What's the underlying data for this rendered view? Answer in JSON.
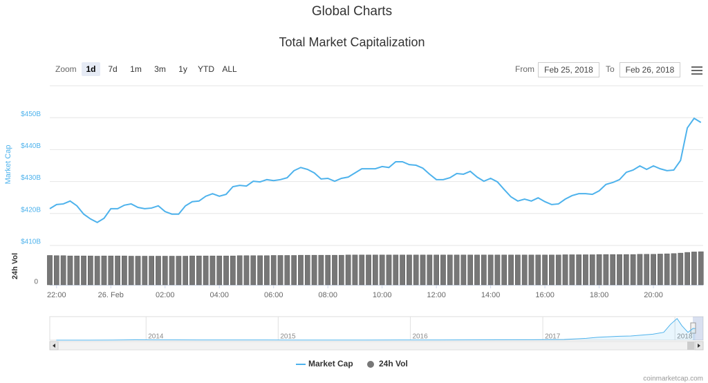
{
  "header": {
    "title": "Global Charts"
  },
  "controls": {
    "zoom_label": "Zoom",
    "zoom_options": [
      "1d",
      "7d",
      "1m",
      "3m",
      "1y",
      "YTD",
      "ALL"
    ],
    "zoom_selected": 0,
    "from_label": "From",
    "from_value": "Feb 25, 2018",
    "to_label": "To",
    "to_value": "Feb 26, 2018"
  },
  "credit": "coinmarketcap.com",
  "chart_data": [
    {
      "type": "line",
      "title": "Total Market Capitalization",
      "y_label": "Market Cap",
      "y2_label": "24h Vol",
      "xlim": [
        "2018-02-25T21:45",
        "2018-02-26T21:50"
      ],
      "xticks": [
        {
          "value": "2018-02-25T22:00",
          "label": "22:00"
        },
        {
          "value": "2018-02-26T00:00",
          "label": "26. Feb"
        },
        {
          "value": "2018-02-26T02:00",
          "label": "02:00"
        },
        {
          "value": "2018-02-26T04:00",
          "label": "04:00"
        },
        {
          "value": "2018-02-26T06:00",
          "label": "06:00"
        },
        {
          "value": "2018-02-26T08:00",
          "label": "08:00"
        },
        {
          "value": "2018-02-26T10:00",
          "label": "10:00"
        },
        {
          "value": "2018-02-26T12:00",
          "label": "12:00"
        },
        {
          "value": "2018-02-26T14:00",
          "label": "14:00"
        },
        {
          "value": "2018-02-26T16:00",
          "label": "16:00"
        },
        {
          "value": "2018-02-26T18:00",
          "label": "18:00"
        },
        {
          "value": "2018-02-26T20:00",
          "label": "20:00"
        }
      ],
      "ylim": [
        410,
        460
      ],
      "yticks": [
        {
          "value": 410,
          "label": "$410B"
        },
        {
          "value": 420,
          "label": "$420B"
        },
        {
          "value": 430,
          "label": "$430B"
        },
        {
          "value": 440,
          "label": "$440B"
        },
        {
          "value": 450,
          "label": "$450B"
        }
      ],
      "y2lim": [
        0,
        16
      ],
      "y2ticks": [
        0
      ],
      "grid": true,
      "x": [
        "2018-02-25T21:45",
        "2018-02-25T22:00",
        "2018-02-25T22:15",
        "2018-02-25T22:30",
        "2018-02-25T22:45",
        "2018-02-25T23:00",
        "2018-02-25T23:15",
        "2018-02-25T23:30",
        "2018-02-25T23:45",
        "2018-02-26T00:00",
        "2018-02-26T00:15",
        "2018-02-26T00:30",
        "2018-02-26T00:45",
        "2018-02-26T01:00",
        "2018-02-26T01:15",
        "2018-02-26T01:30",
        "2018-02-26T01:45",
        "2018-02-26T02:00",
        "2018-02-26T02:15",
        "2018-02-26T02:30",
        "2018-02-26T02:45",
        "2018-02-26T03:00",
        "2018-02-26T03:15",
        "2018-02-26T03:30",
        "2018-02-26T03:45",
        "2018-02-26T04:00",
        "2018-02-26T04:15",
        "2018-02-26T04:30",
        "2018-02-26T04:45",
        "2018-02-26T05:00",
        "2018-02-26T05:15",
        "2018-02-26T05:30",
        "2018-02-26T05:45",
        "2018-02-26T06:00",
        "2018-02-26T06:15",
        "2018-02-26T06:30",
        "2018-02-26T06:45",
        "2018-02-26T07:00",
        "2018-02-26T07:15",
        "2018-02-26T07:30",
        "2018-02-26T07:45",
        "2018-02-26T08:00",
        "2018-02-26T08:15",
        "2018-02-26T08:30",
        "2018-02-26T08:45",
        "2018-02-26T09:00",
        "2018-02-26T09:15",
        "2018-02-26T09:30",
        "2018-02-26T09:45",
        "2018-02-26T10:00",
        "2018-02-26T10:15",
        "2018-02-26T10:30",
        "2018-02-26T10:45",
        "2018-02-26T11:00",
        "2018-02-26T11:15",
        "2018-02-26T11:30",
        "2018-02-26T11:45",
        "2018-02-26T12:00",
        "2018-02-26T12:15",
        "2018-02-26T12:30",
        "2018-02-26T12:45",
        "2018-02-26T13:00",
        "2018-02-26T13:15",
        "2018-02-26T13:30",
        "2018-02-26T13:45",
        "2018-02-26T14:00",
        "2018-02-26T14:15",
        "2018-02-26T14:30",
        "2018-02-26T14:45",
        "2018-02-26T15:00",
        "2018-02-26T15:15",
        "2018-02-26T15:30",
        "2018-02-26T15:45",
        "2018-02-26T16:00",
        "2018-02-26T16:15",
        "2018-02-26T16:30",
        "2018-02-26T16:45",
        "2018-02-26T17:00",
        "2018-02-26T17:15",
        "2018-02-26T17:30",
        "2018-02-26T17:45",
        "2018-02-26T18:00",
        "2018-02-26T18:15",
        "2018-02-26T18:30",
        "2018-02-26T18:45",
        "2018-02-26T19:00",
        "2018-02-26T19:15",
        "2018-02-26T19:30",
        "2018-02-26T19:45",
        "2018-02-26T20:00",
        "2018-02-26T20:15",
        "2018-02-26T20:30",
        "2018-02-26T20:45",
        "2018-02-26T21:00",
        "2018-02-26T21:15",
        "2018-02-26T21:30",
        "2018-02-26T21:45"
      ],
      "series": [
        {
          "name": "Market Cap",
          "type": "line",
          "color": "#4db2ec",
          "values": [
            421.5,
            422.8,
            423.0,
            423.9,
            422.4,
            419.8,
            418.3,
            417.2,
            418.5,
            421.5,
            421.5,
            422.6,
            423.0,
            421.9,
            421.5,
            421.7,
            422.4,
            420.6,
            419.8,
            419.8,
            422.4,
            423.7,
            423.9,
            425.4,
            426.2,
            425.4,
            426.0,
            428.4,
            428.8,
            428.6,
            430.1,
            429.9,
            430.6,
            430.3,
            430.6,
            431.2,
            433.4,
            434.4,
            433.8,
            432.7,
            430.8,
            431.0,
            430.1,
            431.0,
            431.4,
            432.7,
            434.0,
            434.0,
            434.0,
            434.7,
            434.4,
            436.2,
            436.2,
            435.3,
            435.1,
            434.2,
            432.3,
            430.6,
            430.6,
            431.2,
            432.5,
            432.3,
            433.2,
            431.4,
            430.1,
            431.0,
            429.9,
            427.5,
            425.2,
            423.9,
            424.5,
            423.9,
            424.9,
            423.7,
            422.8,
            423.0,
            424.5,
            425.6,
            426.2,
            426.2,
            426.0,
            427.1,
            429.1,
            429.7,
            430.6,
            432.9,
            433.6,
            434.9,
            433.8,
            434.9,
            434.0,
            433.4,
            433.6,
            436.6,
            446.8,
            449.8,
            448.5
          ]
        },
        {
          "name": "24h Vol",
          "type": "column",
          "axis": "y2",
          "color": "#777777",
          "values": [
            12.6,
            12.5,
            12.5,
            12.4,
            12.4,
            12.4,
            12.4,
            12.3,
            12.4,
            12.4,
            12.4,
            12.4,
            12.3,
            12.3,
            12.3,
            12.3,
            12.3,
            12.3,
            12.3,
            12.3,
            12.3,
            12.4,
            12.4,
            12.4,
            12.4,
            12.4,
            12.4,
            12.4,
            12.5,
            12.5,
            12.5,
            12.5,
            12.5,
            12.6,
            12.6,
            12.6,
            12.6,
            12.7,
            12.7,
            12.7,
            12.7,
            12.7,
            12.7,
            12.7,
            12.8,
            12.8,
            12.8,
            12.8,
            12.8,
            12.8,
            12.8,
            12.8,
            12.8,
            12.8,
            12.8,
            12.8,
            12.8,
            12.8,
            12.8,
            12.8,
            12.8,
            12.8,
            12.8,
            12.8,
            12.8,
            12.8,
            12.8,
            12.8,
            12.8,
            12.8,
            12.8,
            12.8,
            12.8,
            12.8,
            12.8,
            12.8,
            12.9,
            12.9,
            12.9,
            12.9,
            12.9,
            13.0,
            13.0,
            13.0,
            13.0,
            13.0,
            13.0,
            13.1,
            13.1,
            13.1,
            13.2,
            13.3,
            13.4,
            13.6,
            13.9,
            14.1,
            14.2
          ]
        }
      ]
    },
    {
      "type": "area",
      "xlim": [
        "2013-04-10",
        "2018-03-20"
      ],
      "ylim": [
        0,
        850
      ],
      "xticks": [
        {
          "value": "2014-01-01",
          "label": "2014"
        },
        {
          "value": "2015-01-01",
          "label": "2015"
        },
        {
          "value": "2016-01-01",
          "label": "2016"
        },
        {
          "value": "2017-01-01",
          "label": "2017"
        },
        {
          "value": "2018-01-01",
          "label": "2018"
        }
      ],
      "x": [
        "2013-04-28",
        "2013-07-01",
        "2013-10-01",
        "2013-12-01",
        "2014-02-01",
        "2014-06-01",
        "2014-09-01",
        "2014-12-01",
        "2015-03-01",
        "2015-06-01",
        "2015-09-01",
        "2015-12-01",
        "2016-03-01",
        "2016-06-01",
        "2016-09-01",
        "2016-12-01",
        "2017-03-01",
        "2017-05-01",
        "2017-06-01",
        "2017-08-01",
        "2017-09-01",
        "2017-11-01",
        "2017-12-01",
        "2017-12-20",
        "2018-01-07",
        "2018-01-20",
        "2018-02-06",
        "2018-02-20",
        "2018-02-26"
      ],
      "series": [
        {
          "name": "Market Cap",
          "color": "#4db2ec",
          "values": [
            1.5,
            1.2,
            2,
            12,
            10,
            8,
            6,
            5,
            4,
            4,
            4,
            7,
            7,
            10,
            12,
            17,
            25,
            70,
            110,
            150,
            160,
            230,
            300,
            610,
            830,
            560,
            300,
            450,
            446
          ]
        }
      ]
    }
  ]
}
